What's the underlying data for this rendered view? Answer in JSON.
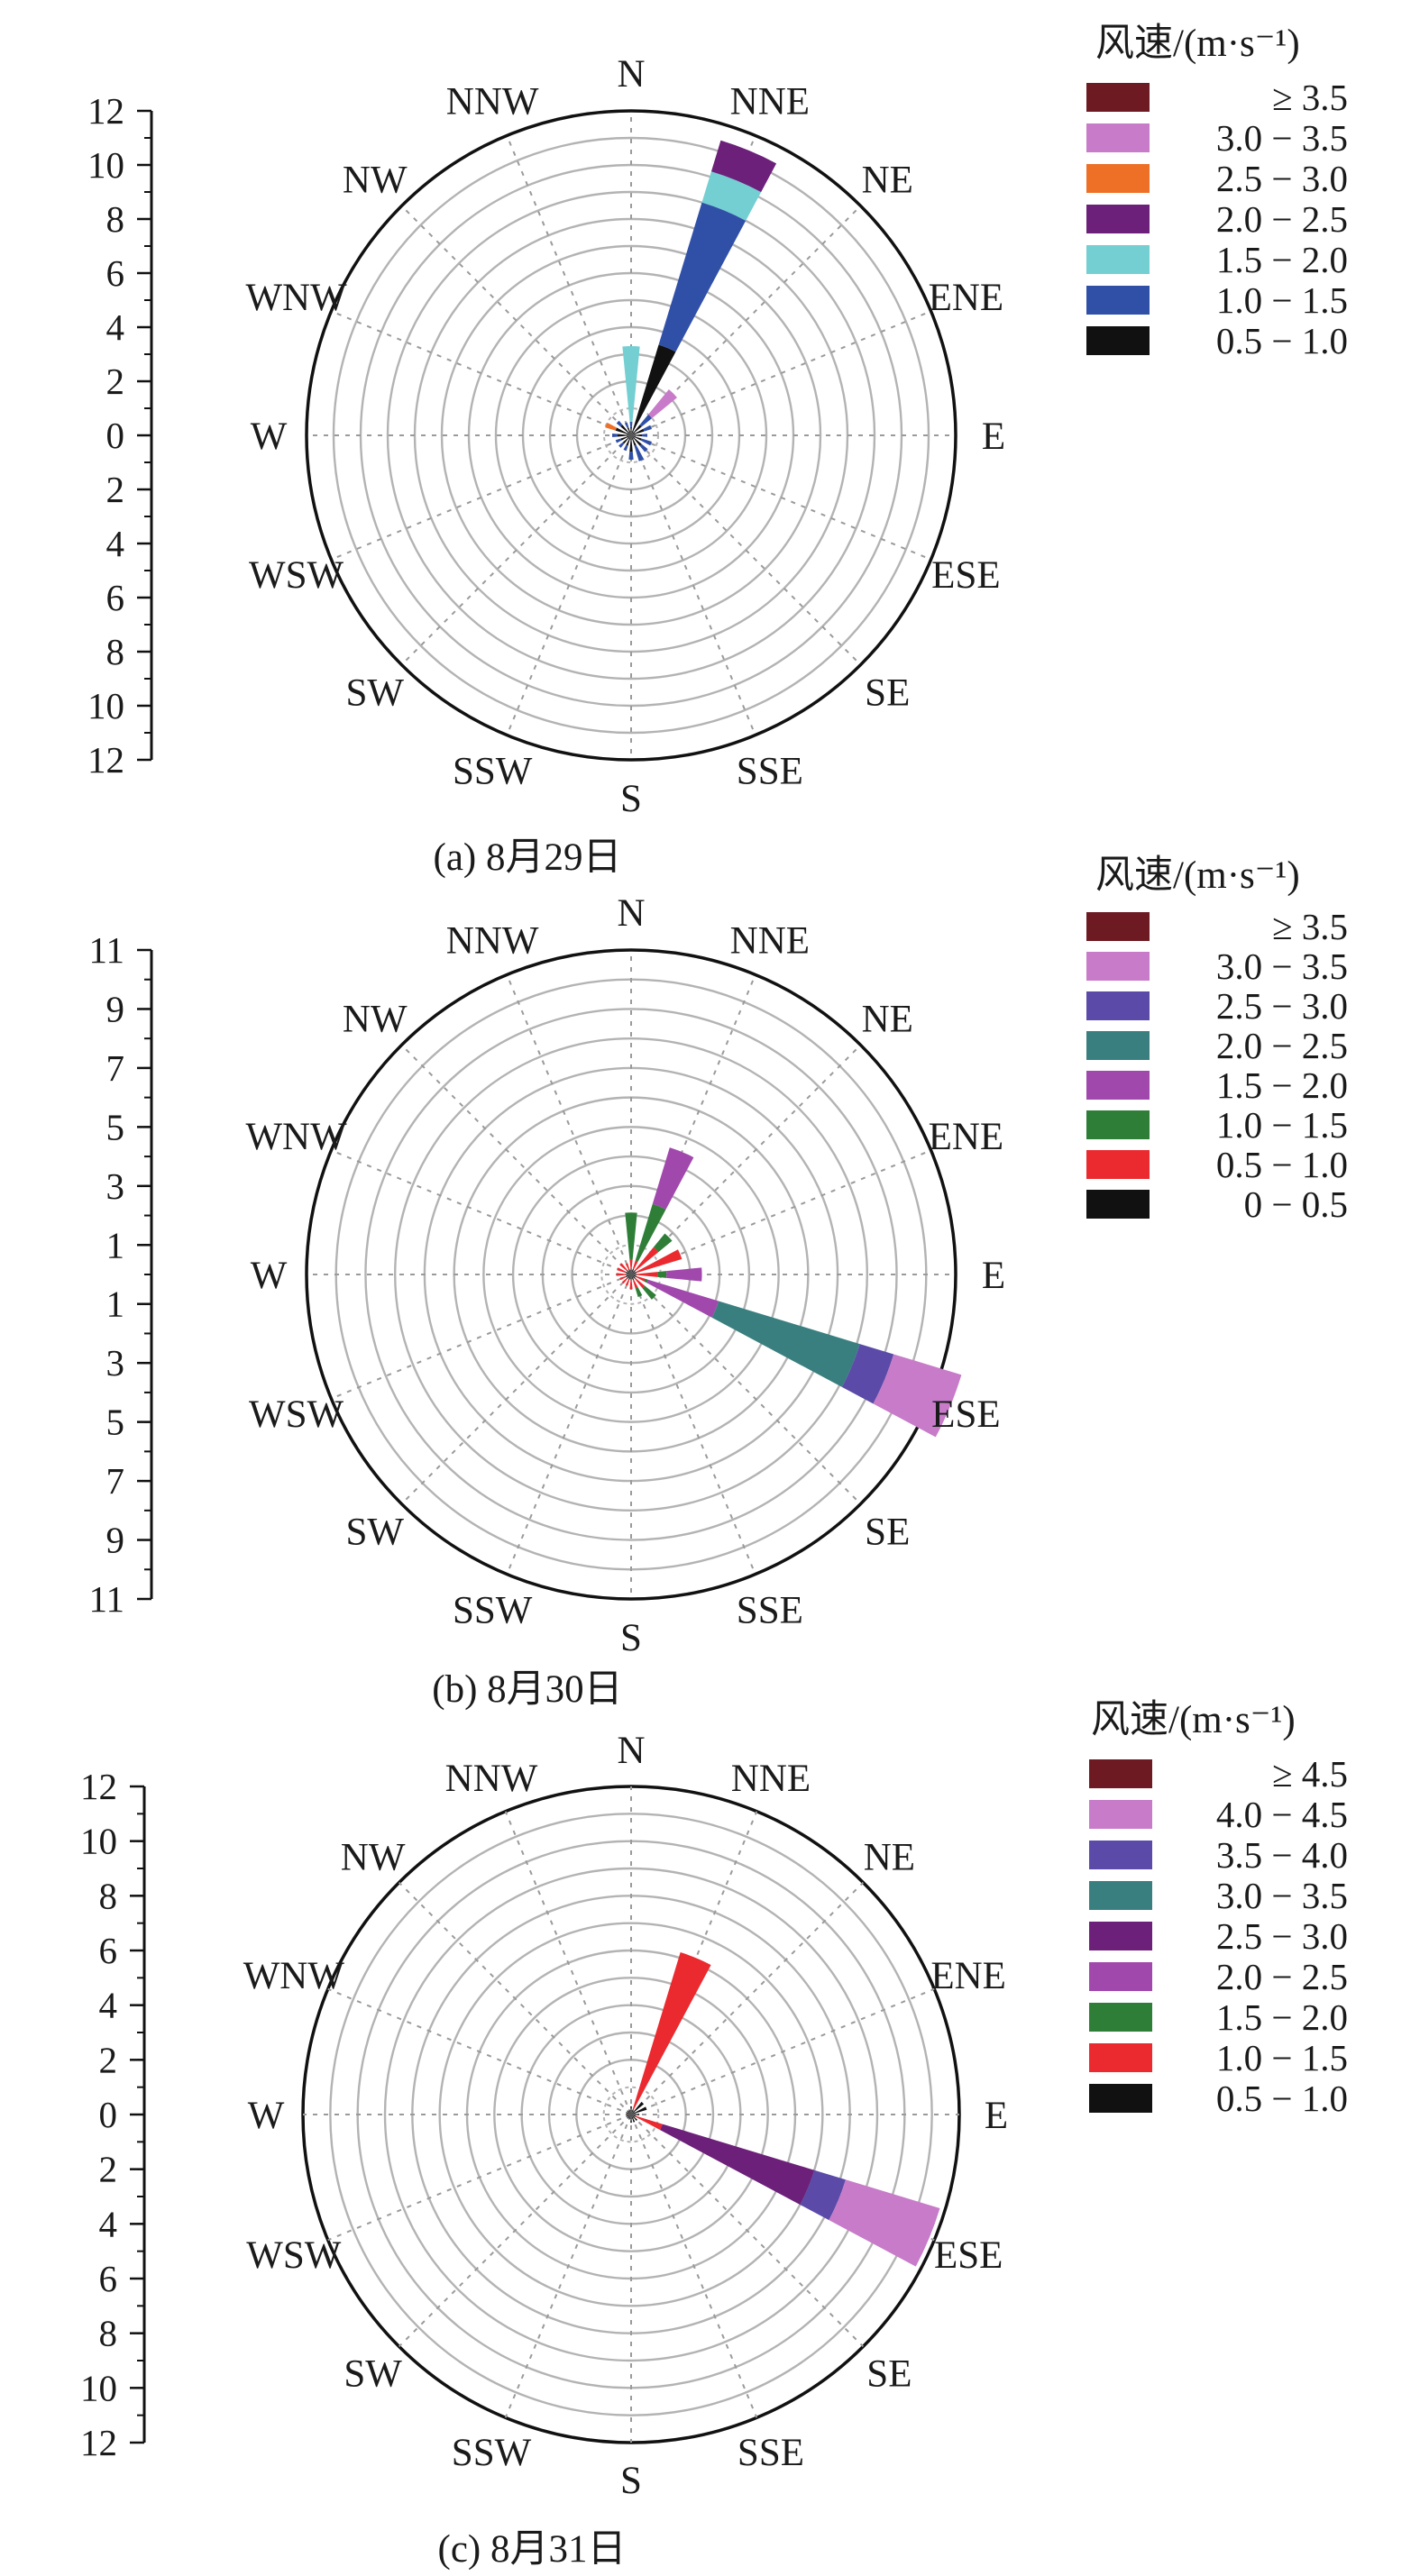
{
  "charts": [
    {
      "caption": "(a) 8月29日",
      "legend": {
        "title": "风速/(m·s⁻¹)",
        "entries": [
          {
            "label": "≥ 3.5",
            "color": "#6d1a22"
          },
          {
            "label": "3.0 − 3.5",
            "color": "#c77bc9"
          },
          {
            "label": "2.5 − 3.0",
            "color": "#ee7027"
          },
          {
            "label": "2.0 − 2.5",
            "color": "#6c2079"
          },
          {
            "label": "1.5 − 2.0",
            "color": "#73cfd2"
          },
          {
            "label": "1.0 − 1.5",
            "color": "#3050a8"
          },
          {
            "label": "0.5 − 1.0",
            "color": "#111111"
          }
        ]
      },
      "ticks": [
        "12",
        "10",
        "8",
        "6",
        "4",
        "2",
        "0",
        "2",
        "4",
        "6",
        "8",
        "10",
        "12"
      ]
    },
    {
      "caption": "(b) 8月30日",
      "legend": {
        "title": "风速/(m·s⁻¹)",
        "entries": [
          {
            "label": "≥ 3.5",
            "color": "#6d1a22"
          },
          {
            "label": "3.0 − 3.5",
            "color": "#c77bc9"
          },
          {
            "label": "2.5 − 3.0",
            "color": "#5b4aa8"
          },
          {
            "label": "2.0 − 2.5",
            "color": "#3a7f7f"
          },
          {
            "label": "1.5 − 2.0",
            "color": "#a148ad"
          },
          {
            "label": "1.0 − 1.5",
            "color": "#2f7e38"
          },
          {
            "label": "0.5 − 1.0",
            "color": "#ea2a2f"
          },
          {
            "label": "0 − 0.5",
            "color": "#111111"
          }
        ]
      },
      "ticks": [
        "11",
        "9",
        "7",
        "5",
        "3",
        "1",
        "1",
        "3",
        "5",
        "7",
        "9",
        "11"
      ]
    },
    {
      "caption": "(c) 8月31日",
      "legend": {
        "title": "风速/(m·s⁻¹)",
        "entries": [
          {
            "label": "≥ 4.5",
            "color": "#6d1a22"
          },
          {
            "label": "4.0 − 4.5",
            "color": "#c77bc9"
          },
          {
            "label": "3.5 − 4.0",
            "color": "#5b4aa8"
          },
          {
            "label": "3.0 − 3.5",
            "color": "#3a7f7f"
          },
          {
            "label": "2.5 − 3.0",
            "color": "#6c2079"
          },
          {
            "label": "2.0 − 2.5",
            "color": "#a148ad"
          },
          {
            "label": "1.5 − 2.0",
            "color": "#2f7e38"
          },
          {
            "label": "1.0 − 1.5",
            "color": "#ea2a2f"
          },
          {
            "label": "0.5 − 1.0",
            "color": "#111111"
          }
        ]
      },
      "ticks": [
        "12",
        "10",
        "8",
        "6",
        "4",
        "2",
        "0",
        "2",
        "4",
        "6",
        "8",
        "10",
        "12"
      ]
    }
  ],
  "directions": [
    "N",
    "NNE",
    "NE",
    "ENE",
    "E",
    "ESE",
    "SE",
    "SSE",
    "S",
    "SSW",
    "SW",
    "WSW",
    "W",
    "WNW",
    "NW",
    "NNW"
  ],
  "chart_data": [
    {
      "type": "wind-rose",
      "rmax": 12,
      "ring_step": 1,
      "units": "%",
      "directions": [
        "N",
        "NNE",
        "NE",
        "ENE",
        "E",
        "ESE",
        "SE",
        "SSE",
        "S",
        "SSW",
        "SW",
        "WSW",
        "W",
        "WNW",
        "NW",
        "NNW"
      ],
      "bins": [
        "0.5 − 1.0",
        "1.0 − 1.5",
        "1.5 − 2.0",
        "2.0 − 2.5",
        "2.5 − 3.0",
        "3.0 − 3.5",
        "≥ 3.5"
      ],
      "bin_colors": [
        "#111111",
        "#3050a8",
        "#73cfd2",
        "#6c2079",
        "#ee7027",
        "#c77bc9",
        "#6d1a22"
      ],
      "values": {
        "N": [
          0.3,
          0.2,
          2.8,
          0,
          0,
          0,
          0
        ],
        "NNE": [
          3.5,
          5.5,
          1.2,
          1.2,
          0,
          0,
          0
        ],
        "NE": [
          0.5,
          0.5,
          0,
          0,
          0,
          1.2,
          0
        ],
        "ENE": [
          0.5,
          0.3,
          0,
          0,
          0,
          0,
          0
        ],
        "E": [
          0.4,
          0.2,
          0,
          0,
          0,
          0,
          0
        ],
        "ESE": [
          0.4,
          0.4,
          0,
          0,
          0,
          0,
          0
        ],
        "SE": [
          0.5,
          0.3,
          0,
          0,
          0,
          0,
          0
        ],
        "SSE": [
          0.4,
          0.6,
          0,
          0,
          0,
          0,
          0
        ],
        "S": [
          0.6,
          0.3,
          0,
          0,
          0,
          0,
          0
        ],
        "SSW": [
          0.4,
          0.2,
          0,
          0,
          0,
          0,
          0
        ],
        "SW": [
          0.4,
          0.2,
          0,
          0,
          0,
          0,
          0
        ],
        "WSW": [
          0.4,
          0.2,
          0,
          0,
          0,
          0,
          0
        ],
        "W": [
          0.5,
          0.2,
          0,
          0,
          0,
          0,
          0
        ],
        "WNW": [
          0.6,
          0,
          0,
          0,
          0.4,
          0,
          0
        ],
        "NW": [
          0.5,
          0.2,
          0,
          0,
          0,
          0,
          0
        ],
        "NNW": [
          0.3,
          0.2,
          0,
          0,
          0,
          0,
          0
        ]
      }
    },
    {
      "type": "wind-rose",
      "rmax": 11,
      "ring_step": 1,
      "units": "%",
      "directions": [
        "N",
        "NNE",
        "NE",
        "ENE",
        "E",
        "ESE",
        "SE",
        "SSE",
        "S",
        "SSW",
        "SW",
        "WSW",
        "W",
        "WNW",
        "NW",
        "NNW"
      ],
      "bins": [
        "0 − 0.5",
        "0.5 − 1.0",
        "1.0 − 1.5",
        "1.5 − 2.0",
        "2.0 − 2.5",
        "2.5 − 3.0",
        "3.0 − 3.5",
        "≥ 3.5"
      ],
      "bin_colors": [
        "#111111",
        "#ea2a2f",
        "#2f7e38",
        "#a148ad",
        "#3a7f7f",
        "#5b4aa8",
        "#c77bc9",
        "#6d1a22"
      ],
      "values": {
        "N": [
          0.2,
          0.3,
          1.6,
          0,
          0,
          0,
          0,
          0
        ],
        "NNE": [
          0.2,
          0.3,
          2.0,
          2.0,
          0,
          0,
          0,
          0
        ],
        "NE": [
          0.2,
          1.0,
          0.6,
          0,
          0,
          0,
          0,
          0
        ],
        "ENE": [
          0.2,
          1.6,
          0,
          0,
          0,
          0,
          0,
          0
        ],
        "E": [
          0.2,
          0.7,
          0.3,
          1.2,
          0,
          0,
          0,
          0
        ],
        "ESE": [
          0.2,
          0.3,
          0.1,
          2.5,
          5.0,
          1.2,
          2.4,
          0
        ],
        "SE": [
          0.2,
          0.4,
          0.5,
          0,
          0,
          0,
          0,
          0
        ],
        "SSE": [
          0.2,
          0.3,
          0.3,
          0,
          0,
          0,
          0,
          0
        ],
        "S": [
          0.2,
          0.3,
          0,
          0,
          0,
          0,
          0,
          0
        ],
        "SSW": [
          0.2,
          0.2,
          0,
          0,
          0,
          0,
          0,
          0
        ],
        "SW": [
          0.2,
          0.2,
          0,
          0,
          0,
          0,
          0,
          0
        ],
        "WSW": [
          0.2,
          0.2,
          0,
          0,
          0,
          0,
          0,
          0
        ],
        "W": [
          0.2,
          0.3,
          0,
          0,
          0,
          0,
          0,
          0
        ],
        "WNW": [
          0.2,
          0.3,
          0,
          0,
          0,
          0,
          0,
          0
        ],
        "NW": [
          0.2,
          0.3,
          0,
          0,
          0,
          0,
          0,
          0
        ],
        "NNW": [
          0.2,
          0.2,
          0,
          0,
          0,
          0,
          0,
          0
        ]
      }
    },
    {
      "type": "wind-rose",
      "rmax": 12,
      "ring_step": 1,
      "units": "%",
      "directions": [
        "N",
        "NNE",
        "NE",
        "ENE",
        "E",
        "ESE",
        "SE",
        "SSE",
        "S",
        "SSW",
        "SW",
        "WSW",
        "W",
        "WNW",
        "NW",
        "NNW"
      ],
      "bins": [
        "0.5 − 1.0",
        "1.0 − 1.5",
        "1.5 − 2.0",
        "2.0 − 2.5",
        "2.5 − 3.0",
        "3.0 − 3.5",
        "3.5 − 4.0",
        "4.0 − 4.5",
        "≥ 4.5"
      ],
      "bin_colors": [
        "#111111",
        "#ea2a2f",
        "#2f7e38",
        "#a148ad",
        "#6c2079",
        "#3a7f7f",
        "#5b4aa8",
        "#c77bc9",
        "#6d1a22"
      ],
      "values": {
        "N": [
          0.3,
          0,
          0,
          0,
          0,
          0,
          0,
          0,
          0
        ],
        "NNE": [
          0.2,
          6.0,
          0,
          0,
          0,
          0,
          0,
          0,
          0
        ],
        "NE": [
          0.6,
          0,
          0,
          0,
          0,
          0,
          0,
          0,
          0
        ],
        "ENE": [
          0.6,
          0,
          0,
          0,
          0,
          0,
          0,
          0,
          0
        ],
        "E": [
          0.3,
          0,
          0,
          0,
          0,
          0,
          0,
          0,
          0
        ],
        "ESE": [
          0.2,
          1.0,
          0,
          0,
          5.8,
          0,
          1.2,
          3.6,
          0
        ],
        "SE": [
          0.3,
          0,
          0,
          0,
          0,
          0,
          0,
          0,
          0
        ],
        "SSE": [
          0.3,
          0,
          0,
          0,
          0,
          0,
          0,
          0,
          0
        ],
        "S": [
          0.3,
          0,
          0,
          0,
          0,
          0,
          0,
          0,
          0
        ],
        "SSW": [
          0.2,
          0,
          0,
          0,
          0,
          0,
          0,
          0,
          0
        ],
        "SW": [
          0.2,
          0,
          0,
          0,
          0,
          0,
          0,
          0,
          0
        ],
        "WSW": [
          0.2,
          0,
          0,
          0,
          0,
          0,
          0,
          0,
          0
        ],
        "W": [
          0.2,
          0,
          0,
          0,
          0,
          0,
          0,
          0,
          0
        ],
        "WNW": [
          0.2,
          0,
          0,
          0,
          0,
          0,
          0,
          0,
          0
        ],
        "NW": [
          0.2,
          0,
          0,
          0,
          0,
          0,
          0,
          0,
          0
        ],
        "NNW": [
          0.2,
          0,
          0,
          0,
          0,
          0,
          0,
          0,
          0
        ]
      }
    }
  ]
}
